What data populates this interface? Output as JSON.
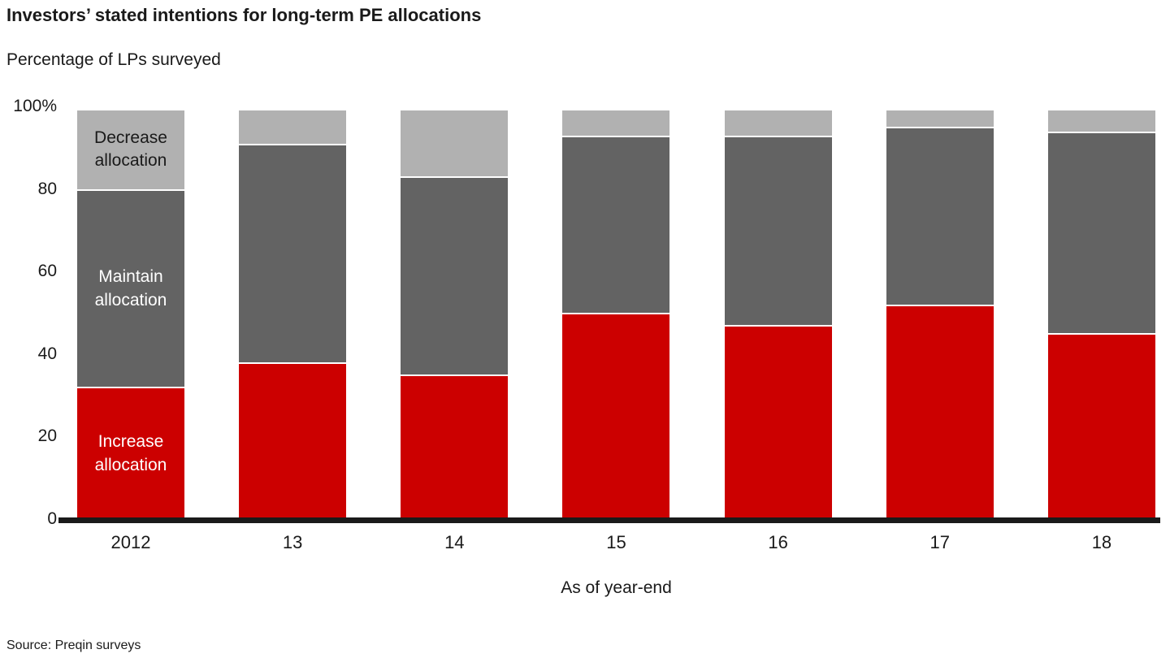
{
  "header": {
    "title": "Investors’ stated intentions for long-term PE allocations",
    "subtitle": "Percentage of LPs surveyed"
  },
  "footer": {
    "source": "Source: Preqin surveys"
  },
  "chart_data": {
    "type": "bar",
    "stacked": true,
    "title": "Investors’ stated intentions for long-term PE allocations",
    "subtitle": "Percentage of LPs surveyed",
    "xlabel": "As of year-end",
    "ylabel": "Percentage of LPs surveyed",
    "ylim": [
      0,
      100
    ],
    "grid": false,
    "legend_position": "inside-first-bar",
    "label_bar_index": 0,
    "categories": [
      "2012",
      "13",
      "14",
      "15",
      "16",
      "17",
      "18"
    ],
    "series": [
      {
        "name": "Increase allocation",
        "color": "#cc0000",
        "label_color": "#ffffff",
        "values": [
          32,
          38,
          35,
          50,
          47,
          52,
          45
        ]
      },
      {
        "name": "Maintain allocation",
        "color": "#636363",
        "label_color": "#ffffff",
        "values": [
          48,
          53,
          48,
          43,
          46,
          43,
          49
        ]
      },
      {
        "name": "Decrease allocation",
        "color": "#b1b1b1",
        "label_color": "#1a1a1a",
        "values": [
          19,
          8,
          16,
          6,
          6,
          4,
          5
        ]
      }
    ],
    "yticks": [
      {
        "value": 0,
        "label": "0"
      },
      {
        "value": 20,
        "label": "20"
      },
      {
        "value": 40,
        "label": "40"
      },
      {
        "value": 60,
        "label": "60"
      },
      {
        "value": 80,
        "label": "80"
      },
      {
        "value": 100,
        "label": "100%"
      }
    ]
  }
}
